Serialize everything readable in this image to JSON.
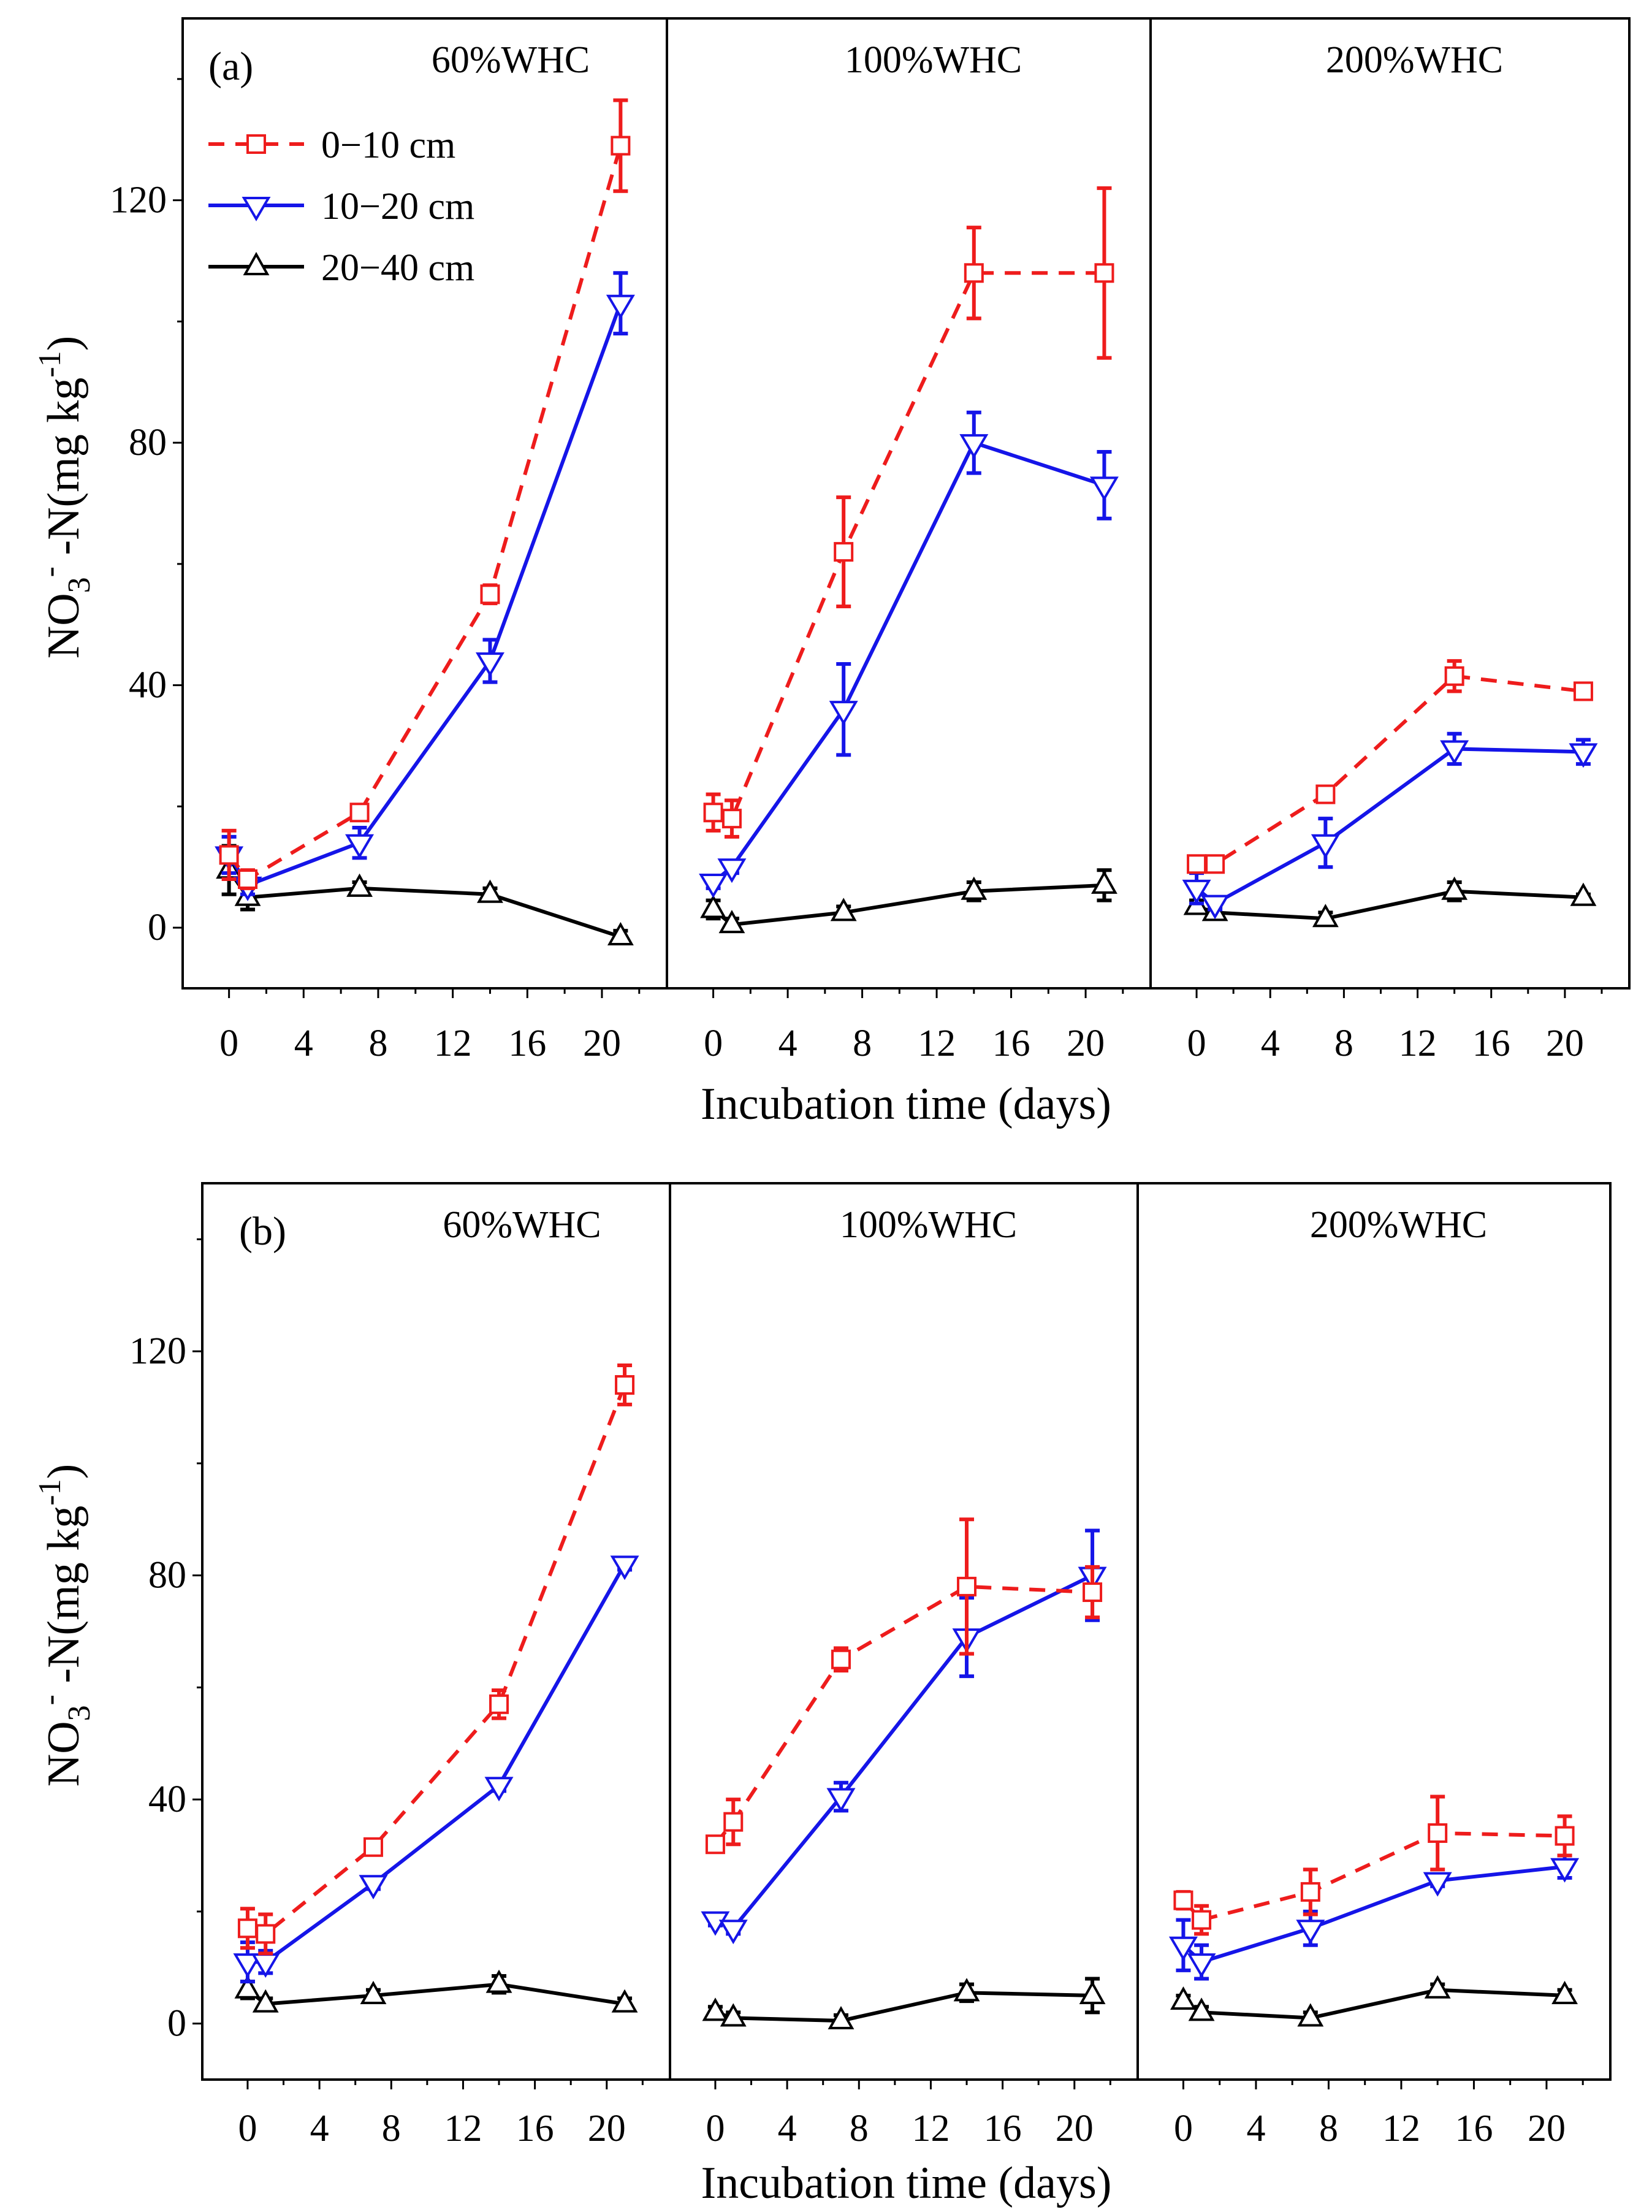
{
  "chart_data": {
    "type": "line",
    "title": "",
    "series_names": [
      "0−10 cm",
      "10−20 cm",
      "20−40 cm"
    ],
    "colors": {
      "0−10 cm": "#ee1c1c",
      "10−20 cm": "#1515e8",
      "20−40 cm": "#000000"
    },
    "line_styles": {
      "0−10 cm": "dashed",
      "10−20 cm": "solid",
      "20−40 cm": "solid"
    },
    "markers": {
      "0−10 cm": "square",
      "10−20 cm": "triangle-down",
      "20−40 cm": "triangle-up"
    },
    "xlabel": "Incubation time (days)",
    "ylabel": {
      "main": "NO",
      "sub": "3",
      "sup1": "-",
      "mid": " -N(mg kg",
      "sup2": "-1",
      "end": ")"
    },
    "x_ticks": [
      "0",
      "4",
      "8",
      "12",
      "16",
      "20"
    ],
    "y_ticks": [
      "0",
      "40",
      "80",
      "120"
    ],
    "xlim": [
      -1.5,
      22.5
    ],
    "ylim": [
      -10,
      150
    ],
    "legend_panel": "a",
    "panels": [
      {
        "id": "a",
        "label": "(a)",
        "subplots": [
          {
            "condition": "60%WHC",
            "series": [
              {
                "name": "0−10 cm",
                "x": [
                  0,
                  1,
                  7,
                  14,
                  21
                ],
                "y": [
                  12,
                  8,
                  19,
                  55,
                  129
                ],
                "err": [
                  4,
                  1.5,
                  1,
                  1.5,
                  7.5
                ]
              },
              {
                "name": "10−20 cm",
                "x": [
                  0,
                  1,
                  7,
                  14,
                  21
                ],
                "y": [
                  12,
                  7,
                  14,
                  44,
                  103
                ],
                "err": [
                  3,
                  1.5,
                  2.5,
                  3.5,
                  5
                ]
              },
              {
                "name": "20−40 cm",
                "x": [
                  0,
                  1,
                  7,
                  14,
                  21
                ],
                "y": [
                  9.5,
                  5,
                  6.5,
                  5.5,
                  -1.5
                ],
                "err": [
                  4,
                  2,
                  1,
                  1,
                  1
                ]
              }
            ]
          },
          {
            "condition": "100%WHC",
            "series": [
              {
                "name": "0−10 cm",
                "x": [
                  0,
                  1,
                  7,
                  14,
                  21
                ],
                "y": [
                  19,
                  18,
                  62,
                  108,
                  108
                ],
                "err": [
                  3,
                  3,
                  9,
                  7.5,
                  14
                ]
              },
              {
                "name": "10−20 cm",
                "x": [
                  0,
                  1,
                  7,
                  14,
                  21
                ],
                "y": [
                  7.5,
                  10,
                  36,
                  80,
                  73
                ],
                "err": [
                  1,
                  1,
                  7.5,
                  5,
                  5.5
                ]
              },
              {
                "name": "20−40 cm",
                "x": [
                  0,
                  1,
                  7,
                  14,
                  21
                ],
                "y": [
                  3,
                  0.5,
                  2.5,
                  6,
                  7
                ],
                "err": [
                  1.5,
                  1,
                  1,
                  1.5,
                  2.5
                ]
              }
            ]
          },
          {
            "condition": "200%WHC",
            "series": [
              {
                "name": "0−10 cm",
                "x": [
                  0,
                  1,
                  7,
                  14,
                  21
                ],
                "y": [
                  10.5,
                  10.5,
                  22,
                  41.5,
                  39
                ],
                "err": [
                  1,
                  1,
                  1,
                  2.5,
                  1
                ]
              },
              {
                "name": "10−20 cm",
                "x": [
                  0,
                  1,
                  7,
                  14,
                  21
                ],
                "y": [
                  6.5,
                  4,
                  14,
                  29.5,
                  29
                ],
                "err": [
                  2.5,
                  1,
                  4,
                  2.5,
                  2
                ]
              },
              {
                "name": "20−40 cm",
                "x": [
                  0,
                  1,
                  7,
                  14,
                  21
                ],
                "y": [
                  3.5,
                  2.5,
                  1.5,
                  6,
                  5
                ],
                "err": [
                  1,
                  1,
                  1,
                  1.5,
                  0.5
                ]
              }
            ]
          }
        ]
      },
      {
        "id": "b",
        "label": "(b)",
        "subplots": [
          {
            "condition": "60%WHC",
            "series": [
              {
                "name": "0−10 cm",
                "x": [
                  0,
                  1,
                  7,
                  14,
                  21
                ],
                "y": [
                  17,
                  16,
                  31.5,
                  57,
                  114
                ],
                "err": [
                  3.5,
                  3.5,
                  1,
                  2.5,
                  3.5
                ]
              },
              {
                "name": "10−20 cm",
                "x": [
                  0,
                  1,
                  7,
                  14,
                  21
                ],
                "y": [
                  11,
                  11,
                  25,
                  42.5,
                  82
                ],
                "err": [
                  3.5,
                  2,
                  1,
                  1,
                  1
                ]
              },
              {
                "name": "20−40 cm",
                "x": [
                  0,
                  1,
                  7,
                  14,
                  21
                ],
                "y": [
                  6,
                  3.5,
                  5,
                  7,
                  3.5
                ],
                "err": [
                  1.5,
                  1,
                  1,
                  1.5,
                  1
                ]
              }
            ]
          },
          {
            "condition": "100%WHC",
            "series": [
              {
                "name": "0−10 cm",
                "x": [
                  0,
                  1,
                  7,
                  14,
                  21
                ],
                "y": [
                  32,
                  36,
                  65,
                  78,
                  77
                ],
                "err": [
                  1,
                  4,
                  2,
                  12,
                  4.5
                ]
              },
              {
                "name": "10−20 cm",
                "x": [
                  0,
                  1,
                  7,
                  14,
                  21
                ],
                "y": [
                  18.5,
                  17,
                  40.5,
                  69,
                  80
                ],
                "err": [
                  1,
                  1,
                  2.5,
                  7,
                  8
                ]
              },
              {
                "name": "20−40 cm",
                "x": [
                  0,
                  1,
                  7,
                  14,
                  21
                ],
                "y": [
                  2,
                  1,
                  0.5,
                  5.5,
                  5
                ],
                "err": [
                  1,
                  1,
                  1,
                  1.5,
                  3
                ]
              }
            ]
          },
          {
            "condition": "200%WHC",
            "series": [
              {
                "name": "0−10 cm",
                "x": [
                  0,
                  1,
                  7,
                  14,
                  21
                ],
                "y": [
                  22,
                  18.5,
                  23.5,
                  34,
                  33.5
                ],
                "err": [
                  1.5,
                  2.5,
                  4,
                  6.5,
                  3.5
                ]
              },
              {
                "name": "10−20 cm",
                "x": [
                  0,
                  1,
                  7,
                  14,
                  21
                ],
                "y": [
                  14,
                  11,
                  17,
                  25.5,
                  28
                ],
                "err": [
                  4.5,
                  3,
                  3,
                  1,
                  2
                ]
              },
              {
                "name": "20−40 cm",
                "x": [
                  0,
                  1,
                  7,
                  14,
                  21
                ],
                "y": [
                  4,
                  2,
                  1,
                  6,
                  5
                ],
                "err": [
                  1,
                  1,
                  1,
                  1,
                  1
                ]
              }
            ]
          }
        ]
      }
    ]
  }
}
